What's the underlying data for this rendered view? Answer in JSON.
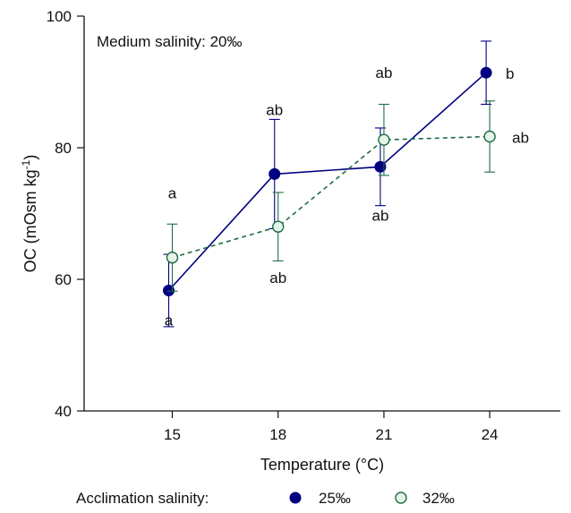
{
  "chart_data": {
    "type": "line",
    "annotation": "Medium salinity: 20‰",
    "xlabel": "Temperature (°C)",
    "ylabel": "OC (mOsm kg",
    "ylabel_superscript": "-1",
    "ylabel_suffix": ")",
    "x": [
      15,
      18,
      21,
      24
    ],
    "x_ticks": [
      "15",
      "18",
      "21",
      "24"
    ],
    "y_ticks": [
      "40",
      "60",
      "80",
      "100"
    ],
    "xlim": [
      12.5,
      26
    ],
    "ylim": [
      40,
      100
    ],
    "grid": false,
    "series": [
      {
        "name": "25‰",
        "marker": "filled-circle",
        "line_style": "solid",
        "color": "#000080",
        "values": [
          58.3,
          76.0,
          77.1,
          91.4
        ],
        "errors": [
          5.5,
          8.3,
          5.9,
          4.8
        ],
        "letters": [
          "a",
          "ab",
          "ab",
          "b"
        ]
      },
      {
        "name": "32‰",
        "marker": "open-circle",
        "line_style": "dashed",
        "color": "#1f6b42",
        "fill": "#e4f4e8",
        "values": [
          63.3,
          68.0,
          81.2,
          81.7
        ],
        "errors": [
          5.1,
          5.2,
          5.4,
          5.4
        ],
        "letters": [
          "a",
          "ab",
          "ab",
          "ab"
        ]
      }
    ],
    "legend": {
      "title": "Acclimation salinity:",
      "placement": "bottom"
    }
  }
}
